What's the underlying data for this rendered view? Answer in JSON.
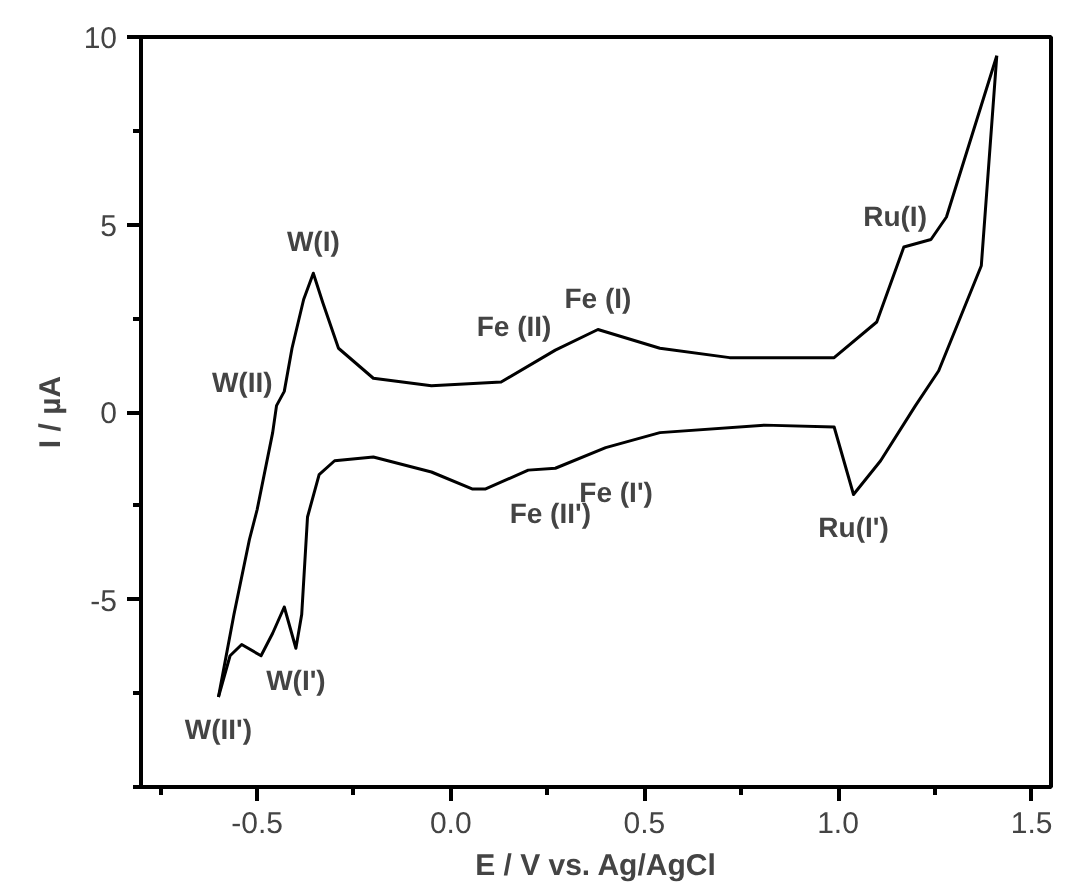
{
  "chart_data": {
    "type": "line",
    "xlabel": "E / V vs. Ag/AgCl",
    "ylabel": "I / µA",
    "xlim": [
      -0.8,
      1.55
    ],
    "ylim": [
      -10,
      10
    ],
    "xticks": [
      {
        "value": -0.5,
        "label": "-0.5"
      },
      {
        "value": 0,
        "label": "0.0"
      },
      {
        "value": 0.5,
        "label": "0.5"
      },
      {
        "value": 1,
        "label": "1.0"
      },
      {
        "value": 1.5,
        "label": "1.5"
      }
    ],
    "yticks": [
      -5,
      0,
      5,
      10
    ],
    "grid": false,
    "marker": "none",
    "line_style": "solid",
    "series": [
      {
        "color": "#000000",
        "x": [
          -0.6,
          -0.56,
          -0.52,
          -0.5,
          -0.46,
          -0.45,
          -0.43,
          -0.41,
          -0.38,
          -0.355,
          -0.33,
          -0.29,
          -0.2,
          -0.05,
          0.13,
          0.27,
          0.38,
          0.54,
          0.72,
          0.99,
          1.1,
          1.17,
          1.24,
          1.28,
          1.41
        ],
        "values": [
          -7.6,
          -5.4,
          -3.4,
          -2.6,
          -0.55,
          0.17,
          0.55,
          1.7,
          3.0,
          3.7,
          2.9,
          1.7,
          0.9,
          0.7,
          0.8,
          1.65,
          2.2,
          1.7,
          1.45,
          1.45,
          2.4,
          4.4,
          4.6,
          5.2,
          9.5
        ]
      },
      {
        "color": "#000000",
        "x": [
          1.41,
          1.37,
          1.26,
          1.2,
          1.11,
          1.04,
          0.99,
          0.81,
          0.54,
          0.4,
          0.27,
          0.2,
          0.09,
          0.055,
          -0.05,
          -0.2,
          -0.3,
          -0.34,
          -0.37,
          -0.385,
          -0.4,
          -0.43,
          -0.46,
          -0.49,
          -0.54,
          -0.57,
          -0.6
        ],
        "values": [
          9.5,
          3.9,
          1.1,
          0.17,
          -1.3,
          -2.2,
          -0.4,
          -0.35,
          -0.55,
          -0.95,
          -1.5,
          -1.55,
          -2.05,
          -2.05,
          -1.6,
          -1.2,
          -1.3,
          -1.67,
          -2.8,
          -5.4,
          -6.3,
          -5.2,
          -5.9,
          -6.5,
          -6.2,
          -6.5,
          -7.6
        ]
      }
    ],
    "annotations": [
      {
        "text": "W(I)",
        "x": -0.355,
        "y": 3.7
      },
      {
        "text": "W(II)",
        "x": -0.45,
        "y": 0.17
      },
      {
        "text": "W(II')",
        "x": -0.6,
        "y": -7.6
      },
      {
        "text": "W(I')",
        "x": -0.4,
        "y": -6.3
      },
      {
        "text": "Fe (II)",
        "x": 0.27,
        "y": 1.65
      },
      {
        "text": "Fe (I)",
        "x": 0.38,
        "y": 2.2
      },
      {
        "text": "Fe (II')",
        "x": 0.09,
        "y": -2.05
      },
      {
        "text": "Fe (I')",
        "x": 0.27,
        "y": -1.5
      },
      {
        "text": "Ru(I)",
        "x": 1.24,
        "y": 4.6
      },
      {
        "text": "Ru(I')",
        "x": 1.04,
        "y": -2.2
      }
    ]
  }
}
